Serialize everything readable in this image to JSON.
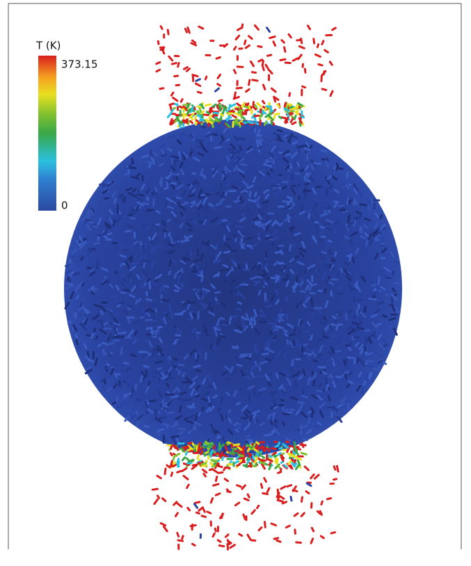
{
  "colorbar": {
    "title": "T (K)",
    "ticks": [
      0,
      373.15
    ]
  }
}
